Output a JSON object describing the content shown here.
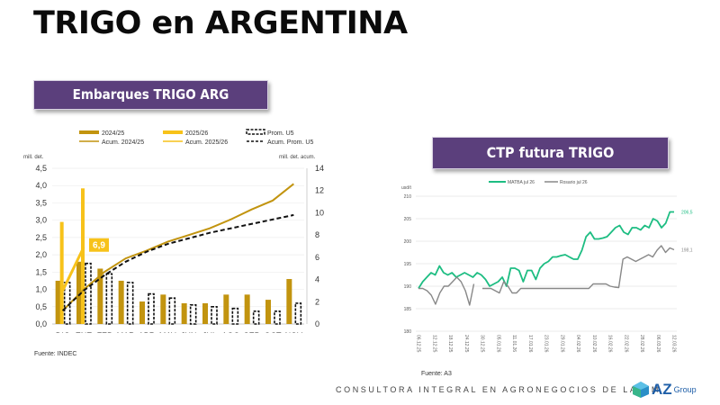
{
  "page": {
    "title": "TRIGO en ARGENTINA",
    "footer": "CONSULTORA INTEGRAL EN AGRONEGOCIOS DE LATAM",
    "logo_text": "AZ",
    "logo_sub": "Group",
    "colors": {
      "banner": "#5b3f7c",
      "gold_2024": "#c2940f",
      "yellow_2025": "#f7c21a",
      "green_matba": "#1dbd82",
      "grey_rosario": "#808080"
    }
  },
  "chart_data": [
    {
      "type": "bar",
      "title": "Embarques TRIGO ARG",
      "ylabel": "mill. det.",
      "y2label": "mill. det. acum.",
      "source": "Fuente: INDEC",
      "categories": [
        "DIC",
        "ENE",
        "FEB",
        "MAR",
        "ABR",
        "MAY",
        "JUN",
        "JUL",
        "AGO",
        "SEP",
        "OCT",
        "NOV"
      ],
      "ylim": [
        0,
        4.5
      ],
      "yticks": [
        "0,0",
        "0,5",
        "1,0",
        "1,5",
        "2,0",
        "2,5",
        "3,0",
        "3,5",
        "4,0",
        "4,5"
      ],
      "y2lim": [
        0,
        14
      ],
      "y2ticks": [
        "0",
        "2",
        "4",
        "6",
        "8",
        "10",
        "12",
        "14"
      ],
      "legend": [
        "2024/25",
        "2025/26",
        "Prom. U5",
        "Acum. 2024/25",
        "Acum. 2025/26",
        "Acum. Prom. U5"
      ],
      "bar_series": [
        {
          "name": "2024/25",
          "values": [
            1.25,
            1.8,
            1.6,
            1.25,
            0.65,
            0.85,
            0.6,
            0.6,
            0.85,
            0.85,
            0.7,
            1.3
          ]
        },
        {
          "name": "2025/26",
          "values": [
            2.95,
            3.92
          ]
        },
        {
          "name": "Prom. U5",
          "values": [
            1.2,
            1.75,
            1.45,
            1.2,
            0.87,
            0.75,
            0.55,
            0.5,
            0.45,
            0.37,
            0.37,
            0.6
          ]
        }
      ],
      "line_series": [
        {
          "name": "Acum. 2024/25",
          "axis": "right",
          "values": [
            1.2,
            3.1,
            4.7,
            5.9,
            6.6,
            7.4,
            8.0,
            8.6,
            9.4,
            10.3,
            11.1,
            12.6
          ]
        },
        {
          "name": "Acum. 2025/26",
          "axis": "right",
          "values": [
            3.0,
            6.9
          ]
        },
        {
          "name": "Acum. Prom. U5",
          "axis": "right",
          "values": [
            1.2,
            3.0,
            4.4,
            5.6,
            6.5,
            7.2,
            7.7,
            8.2,
            8.6,
            9.0,
            9.4,
            9.8
          ]
        }
      ],
      "annotation": "6,9"
    },
    {
      "type": "line",
      "title": "CTP futura TRIGO",
      "ylabel": "usd/t",
      "source": "Fuente: A3",
      "ylim": [
        180,
        210
      ],
      "yticks": [
        "180",
        "185",
        "190",
        "195",
        "200",
        "205",
        "210"
      ],
      "x_ticks": [
        "06.12.25",
        "12.12.25",
        "18.12.25",
        "24.12.25",
        "30.12.25",
        "05.01.26",
        "11.01.26",
        "17.01.26",
        "23.01.26",
        "29.01.26",
        "04.02.26",
        "10.02.26",
        "16.02.26",
        "22.02.26",
        "28.02.26",
        "06.03.26",
        "12.03.26"
      ],
      "legend": [
        "MATBA jul 26",
        "Rosario jul 26"
      ],
      "series": [
        {
          "name": "MATBA jul 26",
          "end_label": "206,5",
          "values": [
            189.5,
            191,
            192,
            193,
            192.5,
            194.5,
            193,
            192.5,
            193,
            192,
            192.5,
            193,
            192.5,
            192,
            193,
            192.5,
            191.5,
            190,
            190.5,
            191,
            192,
            190,
            194,
            194,
            193.5,
            191,
            193.5,
            193.5,
            191.5,
            194,
            195,
            195.5,
            196.5,
            196.5,
            196.8,
            197,
            196.5,
            196,
            196,
            198,
            201,
            202,
            200.5,
            200.5,
            200.7,
            201,
            202,
            203,
            203.5,
            202,
            201.5,
            203,
            203,
            202.5,
            203.5,
            203,
            205,
            204.5,
            203,
            204,
            206.5,
            206.5
          ]
        },
        {
          "name": "Rosario jul 26",
          "end_label": "198,1",
          "values": [
            189.5,
            189.5,
            189,
            188,
            186,
            188.5,
            190,
            190,
            191,
            192,
            191,
            189,
            185.8,
            190.5,
            null,
            189.5,
            189.5,
            189.5,
            189,
            188.5,
            191,
            190,
            188.5,
            188.5,
            189.5,
            189.5,
            189.5,
            189.5,
            189.5,
            189.5,
            189.5,
            189.5,
            189.5,
            189.5,
            189.5,
            189.5,
            189.5,
            189.5,
            189.5,
            189.5,
            189.5,
            190.5,
            190.5,
            190.5,
            190.5,
            190,
            189.8,
            189.7,
            196,
            196.5,
            196,
            195.5,
            196,
            196.5,
            197,
            196.5,
            198,
            199,
            197.5,
            198.5,
            198.1
          ]
        }
      ]
    }
  ]
}
